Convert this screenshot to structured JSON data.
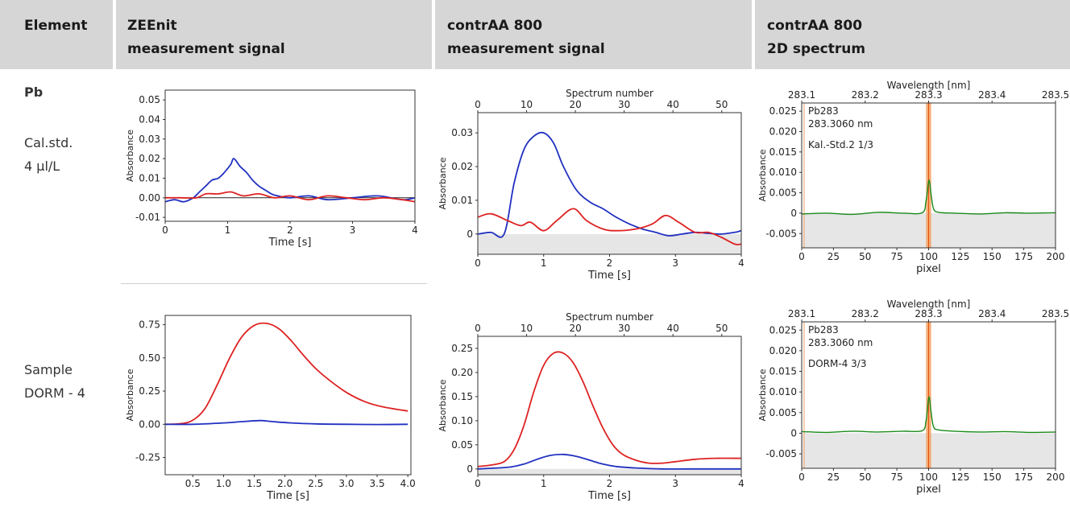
{
  "header": {
    "col_element": "Element",
    "col_zeenit_line1": "ZEEnit",
    "col_zeenit_line2": "measurement signal",
    "col_contraa_line1": "contrAA 800",
    "col_contraa_line2": "measurement signal",
    "col_spectrum_line1": "contrAA 800",
    "col_spectrum_line2": "2D spectrum"
  },
  "rows": [
    {
      "element": "Pb",
      "label_line1": "Cal.std.",
      "label_line2": "4 µl/L"
    },
    {
      "label_line1": "Sample",
      "label_line2": "DORM - 4"
    }
  ],
  "colors": {
    "red": "#dd2222",
    "blue": "#2030c0",
    "green": "#1a8a1a",
    "peak_band": "#f5a060",
    "peak_line": "#e05010",
    "baseline_fill": "#e6e6e6",
    "annotation": "#8b1a1a",
    "header_bg": "#d6d6d6"
  },
  "chart_data": [
    {
      "id": "zeenit_cal",
      "type": "line",
      "xlabel": "Time [s]",
      "ylabel": "Absorbance",
      "xlim": [
        0,
        4
      ],
      "ylim": [
        -0.012,
        0.055
      ],
      "xticks": [
        0,
        1,
        2,
        3,
        4
      ],
      "xtick_labels": [
        "0",
        "1",
        "2",
        "3",
        "4"
      ],
      "yticks": [
        -0.01,
        0.0,
        0.01,
        0.02,
        0.03,
        0.04,
        0.05
      ],
      "ytick_labels": [
        "-0.01",
        "0.00",
        "0.01",
        "0.02",
        "0.03",
        "0.04",
        "0.05"
      ],
      "zero_line": true,
      "series": [
        {
          "color": "blue",
          "x": [
            0,
            0.15,
            0.3,
            0.45,
            0.55,
            0.65,
            0.75,
            0.85,
            0.95,
            1.05,
            1.1,
            1.2,
            1.3,
            1.4,
            1.5,
            1.6,
            1.7,
            1.8,
            2.0,
            2.3,
            2.6,
            3.0,
            3.4,
            3.8,
            4.0
          ],
          "y": [
            -0.002,
            -0.001,
            -0.002,
            0.0,
            0.003,
            0.006,
            0.009,
            0.01,
            0.013,
            0.017,
            0.02,
            0.016,
            0.013,
            0.009,
            0.006,
            0.004,
            0.002,
            0.001,
            0.0,
            0.001,
            -0.001,
            0.0,
            0.001,
            -0.001,
            0.0
          ]
        },
        {
          "color": "red",
          "x": [
            0,
            0.25,
            0.5,
            0.65,
            0.85,
            1.05,
            1.25,
            1.5,
            1.75,
            2.0,
            2.3,
            2.6,
            2.9,
            3.2,
            3.5,
            3.8,
            4.0
          ],
          "y": [
            0.0,
            0.0,
            0.0,
            0.002,
            0.002,
            0.003,
            0.001,
            0.002,
            0.0,
            0.001,
            -0.001,
            0.001,
            0.0,
            -0.001,
            0.0,
            -0.001,
            -0.002
          ]
        }
      ]
    },
    {
      "id": "contraa_cal",
      "type": "line",
      "xlabel": "Time [s]",
      "ylabel": "Absorbance",
      "x2label": "Spectrum number",
      "xlim": [
        0,
        4
      ],
      "ylim": [
        -0.006,
        0.036
      ],
      "x2lim": [
        0,
        54
      ],
      "xticks": [
        0,
        1,
        2,
        3,
        4
      ],
      "xtick_labels": [
        "0",
        "1",
        "2",
        "3",
        "4"
      ],
      "x2ticks": [
        0,
        10,
        20,
        30,
        40,
        50
      ],
      "x2tick_labels": [
        "0",
        "10",
        "20",
        "30",
        "40",
        "50"
      ],
      "yticks": [
        0,
        0.01,
        0.02,
        0.03
      ],
      "ytick_labels": [
        "0",
        "0.01",
        "0.02",
        "0.03"
      ],
      "baseline_fill": true,
      "series": [
        {
          "color": "blue",
          "x": [
            0,
            0.2,
            0.4,
            0.55,
            0.7,
            0.85,
            1.0,
            1.15,
            1.3,
            1.5,
            1.7,
            1.9,
            2.1,
            2.3,
            2.5,
            2.7,
            2.9,
            3.1,
            3.3,
            3.5,
            3.7,
            3.9,
            4.0
          ],
          "y": [
            0.0,
            0.0005,
            0.0,
            0.015,
            0.025,
            0.029,
            0.03,
            0.027,
            0.02,
            0.013,
            0.0095,
            0.0075,
            0.005,
            0.003,
            0.0015,
            0.0005,
            -0.0005,
            0.0,
            0.0005,
            0.0002,
            0.0,
            0.0005,
            0.001
          ]
        },
        {
          "color": "red",
          "x": [
            0,
            0.2,
            0.45,
            0.65,
            0.8,
            1.0,
            1.2,
            1.45,
            1.65,
            1.9,
            2.1,
            2.4,
            2.65,
            2.85,
            3.05,
            3.3,
            3.5,
            3.7,
            3.9,
            4.0
          ],
          "y": [
            0.005,
            0.006,
            0.004,
            0.0025,
            0.0035,
            0.001,
            0.004,
            0.0075,
            0.004,
            0.0015,
            0.001,
            0.0015,
            0.003,
            0.0055,
            0.0035,
            0.0005,
            0.0005,
            -0.001,
            -0.003,
            -0.003
          ]
        }
      ]
    },
    {
      "id": "spectrum_cal",
      "type": "line",
      "xlabel": "pixel",
      "ylabel": "Absorbance",
      "x2label": "Wavelength [nm]",
      "xlim": [
        0,
        200
      ],
      "ylim": [
        -0.0085,
        0.027
      ],
      "x2ticks": [
        0,
        50,
        100,
        150,
        200
      ],
      "x2tick_labels": [
        "283.1",
        "283.2",
        "283.3",
        "283.4",
        "283.5"
      ],
      "xticks": [
        0,
        25,
        50,
        75,
        100,
        125,
        150,
        175,
        200
      ],
      "xtick_labels": [
        "0",
        "25",
        "50",
        "75",
        "100",
        "125",
        "150",
        "175",
        "200"
      ],
      "yticks": [
        -0.005,
        0,
        0.005,
        0.01,
        0.015,
        0.02,
        0.025
      ],
      "ytick_labels": [
        "-0.005",
        "0",
        "0.005",
        "0.010",
        "0.015",
        "0.020",
        "0.025"
      ],
      "baseline_fill": true,
      "peak_band": [
        98,
        102
      ],
      "annotations": [
        "Pb283",
        "283.3060 nm",
        "Kal.-Std.2 1/3"
      ],
      "series": [
        {
          "color": "green",
          "x": [
            0,
            20,
            40,
            60,
            80,
            95,
            98,
            100,
            101,
            102,
            104,
            108,
            120,
            140,
            160,
            180,
            200
          ],
          "y": [
            -0.0002,
            0.0,
            -0.0003,
            0.0002,
            0.0,
            0.0001,
            0.003,
            0.0078,
            0.0072,
            0.0045,
            0.001,
            0.0002,
            0.0,
            -0.0002,
            0.0001,
            0.0,
            0.0001
          ]
        }
      ]
    },
    {
      "id": "zeenit_sample",
      "type": "line",
      "xlabel": "Time [s]",
      "ylabel": "Absorbance",
      "xlim": [
        0.05,
        4.05
      ],
      "ylim": [
        -0.38,
        0.82
      ],
      "xticks": [
        0.5,
        1.0,
        1.5,
        2.0,
        2.5,
        3.0,
        3.5,
        4.0
      ],
      "xtick_labels": [
        "0.5",
        "1.0",
        "1.5",
        "2.0",
        "2.5",
        "3.0",
        "3.5",
        "4.0"
      ],
      "yticks": [
        -0.25,
        0.0,
        0.25,
        0.5,
        0.75
      ],
      "ytick_labels": [
        "-0.25",
        "0.00",
        "0.25",
        "0.50",
        "0.75"
      ],
      "series": [
        {
          "color": "red",
          "x": [
            0.05,
            0.3,
            0.5,
            0.7,
            0.9,
            1.1,
            1.3,
            1.5,
            1.7,
            1.9,
            2.1,
            2.3,
            2.5,
            2.7,
            3.0,
            3.3,
            3.6,
            4.0
          ],
          "y": [
            0.0,
            0.005,
            0.03,
            0.12,
            0.3,
            0.5,
            0.66,
            0.745,
            0.76,
            0.72,
            0.63,
            0.52,
            0.42,
            0.34,
            0.24,
            0.17,
            0.13,
            0.1
          ]
        },
        {
          "color": "blue",
          "x": [
            0.05,
            0.5,
            1.0,
            1.3,
            1.6,
            1.8,
            2.1,
            2.5,
            3.0,
            3.5,
            4.0
          ],
          "y": [
            0.0,
            0.0,
            0.01,
            0.02,
            0.028,
            0.02,
            0.01,
            0.003,
            0.0,
            -0.002,
            0.0
          ]
        }
      ]
    },
    {
      "id": "contraa_sample",
      "type": "line",
      "xlabel": "Time [s]",
      "ylabel": "Absorbance",
      "x2label": "Spectrum number",
      "xlim": [
        0,
        4
      ],
      "ylim": [
        -0.012,
        0.275
      ],
      "x2lim": [
        0,
        54
      ],
      "xticks": [
        0,
        1,
        2,
        3,
        4
      ],
      "xtick_labels": [
        "0",
        "1",
        "2",
        "3",
        "4"
      ],
      "x2ticks": [
        0,
        10,
        20,
        30,
        40,
        50
      ],
      "x2tick_labels": [
        "0",
        "10",
        "20",
        "30",
        "40",
        "50"
      ],
      "yticks": [
        0,
        0.05,
        0.1,
        0.15,
        0.2,
        0.25
      ],
      "ytick_labels": [
        "0",
        "0.05",
        "0.10",
        "0.15",
        "0.20",
        "0.25"
      ],
      "baseline_fill": true,
      "series": [
        {
          "color": "red",
          "x": [
            0,
            0.2,
            0.4,
            0.55,
            0.7,
            0.85,
            1.0,
            1.15,
            1.3,
            1.45,
            1.6,
            1.75,
            1.9,
            2.05,
            2.2,
            2.4,
            2.6,
            2.8,
            3.0,
            3.3,
            3.6,
            4.0
          ],
          "y": [
            0.005,
            0.008,
            0.015,
            0.04,
            0.09,
            0.16,
            0.215,
            0.24,
            0.24,
            0.22,
            0.18,
            0.13,
            0.085,
            0.05,
            0.03,
            0.018,
            0.012,
            0.012,
            0.015,
            0.02,
            0.022,
            0.022
          ]
        },
        {
          "color": "blue",
          "x": [
            0,
            0.3,
            0.5,
            0.7,
            0.9,
            1.1,
            1.3,
            1.5,
            1.7,
            1.9,
            2.1,
            2.4,
            2.8,
            3.2,
            3.6,
            4.0
          ],
          "y": [
            0.0,
            0.002,
            0.004,
            0.01,
            0.02,
            0.028,
            0.03,
            0.026,
            0.018,
            0.01,
            0.005,
            0.002,
            0.0,
            0.0,
            0.0,
            0.0
          ]
        }
      ]
    },
    {
      "id": "spectrum_sample",
      "type": "line",
      "xlabel": "pixel",
      "ylabel": "Absorbance",
      "x2label": "Wavelength [nm]",
      "xlim": [
        0,
        200
      ],
      "ylim": [
        -0.0085,
        0.027
      ],
      "x2ticks": [
        0,
        50,
        100,
        150,
        200
      ],
      "x2tick_labels": [
        "283.1",
        "283.2",
        "283.3",
        "283.4",
        "283.5"
      ],
      "xticks": [
        0,
        25,
        50,
        75,
        100,
        125,
        150,
        175,
        200
      ],
      "xtick_labels": [
        "0",
        "25",
        "50",
        "75",
        "100",
        "125",
        "150",
        "175",
        "200"
      ],
      "yticks": [
        -0.005,
        0,
        0.005,
        0.01,
        0.015,
        0.02,
        0.025
      ],
      "ytick_labels": [
        "-0.005",
        "0",
        "0.005",
        "0.010",
        "0.015",
        "0.020",
        "0.025"
      ],
      "baseline_fill": true,
      "peak_band": [
        98,
        102
      ],
      "annotations": [
        "Pb283",
        "283.3060 nm",
        "DORM-4 3/3"
      ],
      "series": [
        {
          "color": "green",
          "x": [
            0,
            20,
            40,
            60,
            80,
            95,
            98,
            100,
            101,
            102,
            104,
            108,
            120,
            140,
            160,
            180,
            200
          ],
          "y": [
            0.0004,
            0.0002,
            0.0005,
            0.0003,
            0.0005,
            0.0006,
            0.003,
            0.0085,
            0.0078,
            0.005,
            0.0015,
            0.0008,
            0.0005,
            0.0003,
            0.0004,
            0.0002,
            0.0003
          ]
        }
      ]
    }
  ]
}
